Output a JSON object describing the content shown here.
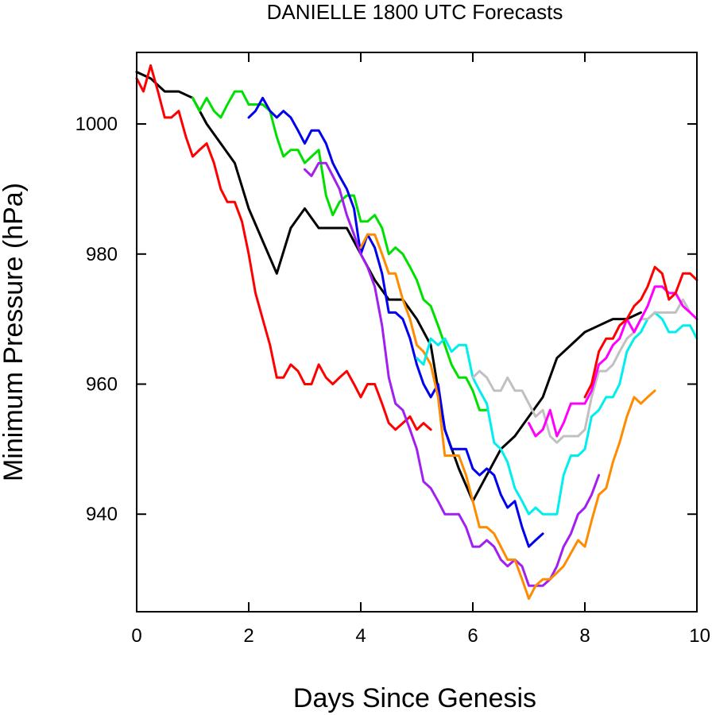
{
  "chart_data": {
    "type": "line",
    "title": "DANIELLE 1800 UTC Forecasts",
    "xlabel": "Days Since Genesis",
    "ylabel": "Minimum Pressure (hPa)",
    "xlim": [
      0,
      10
    ],
    "ylim": [
      925,
      1011
    ],
    "xticks": [
      0,
      2,
      4,
      6,
      8,
      10
    ],
    "yticks": [
      940,
      960,
      980,
      1000
    ],
    "grid": false,
    "series": [
      {
        "color": "#000000",
        "x": [
          0,
          0.25,
          0.5,
          0.75,
          1.0,
          1.25,
          1.5,
          1.75,
          2.0,
          2.25,
          2.5,
          2.75,
          3.0,
          3.25,
          3.5,
          3.75,
          4.0,
          4.25,
          4.5,
          4.75,
          5.0,
          5.25,
          5.5,
          5.75,
          6.0,
          6.25,
          6.5,
          6.75,
          7.0,
          7.25,
          7.5,
          7.75,
          8.0,
          8.25,
          8.5,
          8.75,
          9.0
        ],
        "y": [
          1008,
          1007,
          1005,
          1005,
          1004,
          1000,
          997,
          994,
          987,
          982,
          977,
          984,
          987,
          984,
          984,
          984,
          980,
          976,
          973,
          973,
          970,
          966,
          953,
          947,
          942,
          946,
          950,
          952,
          955,
          958,
          964,
          966,
          968,
          969,
          970,
          970,
          971
        ]
      },
      {
        "color": "#ff0000",
        "x": [
          0,
          0.12,
          0.25,
          0.38,
          0.5,
          0.62,
          0.75,
          0.88,
          1.0,
          1.12,
          1.25,
          1.38,
          1.5,
          1.62,
          1.75,
          1.88,
          2.0,
          2.12,
          2.25,
          2.38,
          2.5,
          2.62,
          2.75,
          2.88,
          3.0,
          3.12,
          3.25,
          3.38,
          3.5,
          3.62,
          3.75,
          3.88,
          4.0,
          4.12,
          4.25,
          4.38,
          4.5,
          4.62,
          4.75,
          4.88,
          5.0,
          5.12,
          5.25
        ],
        "y": [
          1007,
          1005,
          1009,
          1005,
          1001,
          1001,
          1002,
          998,
          995,
          996,
          997,
          994,
          990,
          988,
          988,
          985,
          980,
          974,
          970,
          966,
          961,
          961,
          963,
          962,
          960,
          960,
          963,
          961,
          960,
          961,
          962,
          960,
          958,
          960,
          960,
          957,
          954,
          953,
          954,
          955,
          953,
          954,
          953
        ]
      },
      {
        "color": "#00e000",
        "x": [
          1.0,
          1.12,
          1.25,
          1.38,
          1.5,
          1.62,
          1.75,
          1.88,
          2.0,
          2.12,
          2.25,
          2.38,
          2.5,
          2.62,
          2.75,
          2.88,
          3.0,
          3.12,
          3.25,
          3.38,
          3.5,
          3.62,
          3.75,
          3.88,
          4.0,
          4.12,
          4.25,
          4.38,
          4.5,
          4.62,
          4.75,
          4.88,
          5.0,
          5.12,
          5.25,
          5.38,
          5.5,
          5.62,
          5.75,
          5.88,
          6.0,
          6.12,
          6.25
        ],
        "y": [
          1004,
          1002,
          1004,
          1002,
          1001,
          1003,
          1005,
          1005,
          1003,
          1003,
          1003,
          1002,
          998,
          995,
          996,
          996,
          994,
          995,
          996,
          989,
          986,
          988,
          989,
          989,
          985,
          985,
          986,
          984,
          980,
          981,
          980,
          978,
          976,
          973,
          972,
          969,
          966,
          963,
          961,
          961,
          959,
          956,
          956
        ]
      },
      {
        "color": "#0000ee",
        "x": [
          2.0,
          2.12,
          2.25,
          2.38,
          2.5,
          2.62,
          2.75,
          2.88,
          3.0,
          3.12,
          3.25,
          3.38,
          3.5,
          3.62,
          3.75,
          3.88,
          4.0,
          4.12,
          4.25,
          4.38,
          4.5,
          4.62,
          4.75,
          4.88,
          5.0,
          5.12,
          5.25,
          5.38,
          5.5,
          5.62,
          5.75,
          5.88,
          6.0,
          6.12,
          6.25,
          6.38,
          6.5,
          6.62,
          6.75,
          6.88,
          7.0,
          7.12,
          7.25
        ],
        "y": [
          1001,
          1002,
          1004,
          1002,
          1001,
          1002,
          1001,
          999,
          997,
          999,
          999,
          997,
          994,
          992,
          990,
          987,
          980,
          983,
          981,
          977,
          971,
          971,
          970,
          967,
          963,
          960,
          958,
          960,
          953,
          950,
          950,
          950,
          947,
          946,
          947,
          946,
          943,
          941,
          942,
          938,
          935,
          936,
          937
        ]
      },
      {
        "color": "#a020f0",
        "x": [
          3.0,
          3.12,
          3.25,
          3.38,
          3.5,
          3.62,
          3.75,
          3.88,
          4.0,
          4.12,
          4.25,
          4.38,
          4.5,
          4.62,
          4.75,
          4.88,
          5.0,
          5.12,
          5.25,
          5.38,
          5.5,
          5.62,
          5.75,
          5.88,
          6.0,
          6.12,
          6.25,
          6.38,
          6.5,
          6.62,
          6.75,
          6.88,
          7.0,
          7.12,
          7.25,
          7.38,
          7.5,
          7.62,
          7.75,
          7.88,
          8.0,
          8.12,
          8.25
        ],
        "y": [
          993,
          992,
          994,
          994,
          992,
          990,
          986,
          983,
          980,
          978,
          975,
          969,
          961,
          957,
          956,
          953,
          950,
          945,
          944,
          942,
          940,
          940,
          940,
          938,
          935,
          935,
          936,
          935,
          933,
          932,
          933,
          932,
          929,
          929,
          929,
          930,
          932,
          935,
          937,
          940,
          941,
          943,
          946
        ]
      },
      {
        "color": "#ff8c00",
        "x": [
          4.0,
          4.12,
          4.25,
          4.38,
          4.5,
          4.62,
          4.75,
          4.88,
          5.0,
          5.12,
          5.25,
          5.38,
          5.5,
          5.62,
          5.75,
          5.88,
          6.0,
          6.12,
          6.25,
          6.38,
          6.5,
          6.62,
          6.75,
          6.88,
          7.0,
          7.12,
          7.25,
          7.38,
          7.5,
          7.62,
          7.75,
          7.88,
          8.0,
          8.12,
          8.25,
          8.38,
          8.5,
          8.62,
          8.75,
          8.88,
          9.0,
          9.12,
          9.25
        ],
        "y": [
          981,
          983,
          983,
          980,
          977,
          977,
          973,
          970,
          966,
          965,
          963,
          958,
          949,
          949,
          949,
          946,
          942,
          938,
          938,
          937,
          935,
          933,
          933,
          930,
          927,
          929,
          930,
          930,
          931,
          932,
          934,
          936,
          935,
          939,
          943,
          944,
          948,
          951,
          955,
          958,
          957,
          958,
          959
        ]
      },
      {
        "color": "#00eeee",
        "x": [
          5.0,
          5.12,
          5.25,
          5.38,
          5.5,
          5.62,
          5.75,
          5.88,
          6.0,
          6.12,
          6.25,
          6.38,
          6.5,
          6.62,
          6.75,
          6.88,
          7.0,
          7.12,
          7.25,
          7.38,
          7.5,
          7.62,
          7.75,
          7.88,
          8.0,
          8.12,
          8.25,
          8.38,
          8.5,
          8.62,
          8.75,
          8.88,
          9.0,
          9.12,
          9.25,
          9.38,
          9.5,
          9.62,
          9.75,
          9.88,
          10.0
        ],
        "y": [
          964,
          963,
          967,
          966,
          967,
          965,
          966,
          966,
          961,
          959,
          957,
          951,
          950,
          948,
          944,
          942,
          940,
          941,
          940,
          940,
          940,
          946,
          949,
          949,
          950,
          955,
          956,
          958,
          958,
          960,
          965,
          967,
          968,
          970,
          971,
          970,
          968,
          968,
          969,
          969,
          967
        ]
      },
      {
        "color": "#c0c0c0",
        "x": [
          6.0,
          6.12,
          6.25,
          6.38,
          6.5,
          6.62,
          6.75,
          6.88,
          7.0,
          7.12,
          7.25,
          7.38,
          7.5,
          7.62,
          7.75,
          7.88,
          8.0,
          8.12,
          8.25,
          8.38,
          8.5,
          8.62,
          8.75,
          8.88,
          9.0,
          9.12,
          9.25,
          9.38,
          9.5,
          9.62,
          9.75,
          9.88
        ],
        "y": [
          961,
          962,
          961,
          959,
          959,
          961,
          959,
          959,
          957,
          955,
          956,
          952,
          951,
          952,
          952,
          952,
          953,
          958,
          962,
          962,
          963,
          965,
          967,
          968,
          970,
          970,
          971,
          971,
          971,
          971,
          973,
          971
        ]
      },
      {
        "color": "#ff00ff",
        "x": [
          7.0,
          7.12,
          7.25,
          7.38,
          7.5,
          7.62,
          7.75,
          7.88,
          8.0,
          8.12,
          8.25,
          8.38,
          8.5,
          8.62,
          8.75,
          8.88,
          9.0,
          9.12,
          9.25,
          9.38,
          9.5,
          9.62,
          9.75,
          9.88,
          10.0
        ],
        "y": [
          954,
          952,
          953,
          956,
          952,
          954,
          957,
          957,
          957,
          959,
          963,
          964,
          966,
          967,
          970,
          968,
          970,
          972,
          975,
          975,
          974,
          974,
          972,
          971,
          970
        ]
      },
      {
        "color": "#ff0000",
        "x": [
          8.0,
          8.12,
          8.25,
          8.38,
          8.5,
          8.62,
          8.75,
          8.88,
          9.0,
          9.12,
          9.25,
          9.38,
          9.5,
          9.62,
          9.75,
          9.88,
          10.0
        ],
        "y": [
          958,
          960,
          965,
          967,
          967,
          969,
          970,
          972,
          973,
          975,
          978,
          977,
          973,
          974,
          977,
          977,
          976
        ]
      }
    ]
  }
}
